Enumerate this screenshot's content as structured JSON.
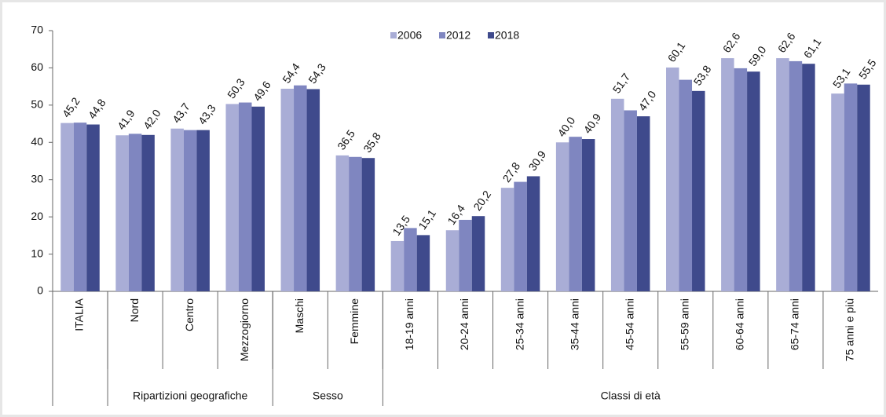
{
  "chart_data": {
    "type": "bar",
    "categories": [
      "ITALIA",
      "Nord",
      "Centro",
      "Mezzogiorno",
      "Maschi",
      "Femmine",
      "18-19 anni",
      "20-24 anni",
      "25-34 anni",
      "35-44 anni",
      "45-54 anni",
      "55-59 anni",
      "60-64 anni",
      "65-74 anni",
      "75 anni e più"
    ],
    "groups": [
      {
        "label": null,
        "size": 1
      },
      {
        "label": "Ripartizioni geografiche",
        "size": 3
      },
      {
        "label": "Sesso",
        "size": 2
      },
      {
        "label": "Classi di età",
        "size": 9
      }
    ],
    "series": [
      {
        "name": "2006",
        "color": "#a9add6",
        "values": [
          45.2,
          41.9,
          43.7,
          50.3,
          54.4,
          36.5,
          13.5,
          16.4,
          27.8,
          40.0,
          51.7,
          60.1,
          62.6,
          62.6,
          53.1
        ],
        "value_labels": [
          "45,2",
          "41,9",
          "43,7",
          "50,3",
          "54,4",
          "36,5",
          "13,5",
          "16,4",
          "27,8",
          "40,0",
          "51,7",
          "60,1",
          "62,6",
          "62,6",
          "53,1"
        ]
      },
      {
        "name": "2012",
        "color": "#7f86c0",
        "values": [
          45.3,
          42.3,
          43.3,
          50.7,
          55.3,
          36.1,
          17.0,
          19.2,
          29.4,
          41.5,
          48.6,
          56.8,
          59.9,
          61.8,
          55.8
        ]
      },
      {
        "name": "2018",
        "color": "#3f4a8c",
        "values": [
          44.8,
          42.0,
          43.3,
          49.6,
          54.3,
          35.8,
          15.1,
          20.2,
          30.9,
          40.9,
          47.0,
          53.8,
          59.0,
          61.1,
          55.5
        ],
        "value_labels": [
          "44,8",
          "42,0",
          "43,3",
          "49,6",
          "54,3",
          "35,8",
          "15,1",
          "20,2",
          "30,9",
          "40,9",
          "47,0",
          "53,8",
          "59,0",
          "61,1",
          "55,5"
        ]
      }
    ],
    "ylim": [
      0,
      70
    ],
    "yticks": [
      0,
      10,
      20,
      30,
      40,
      50,
      60,
      70
    ],
    "legend": "top"
  }
}
